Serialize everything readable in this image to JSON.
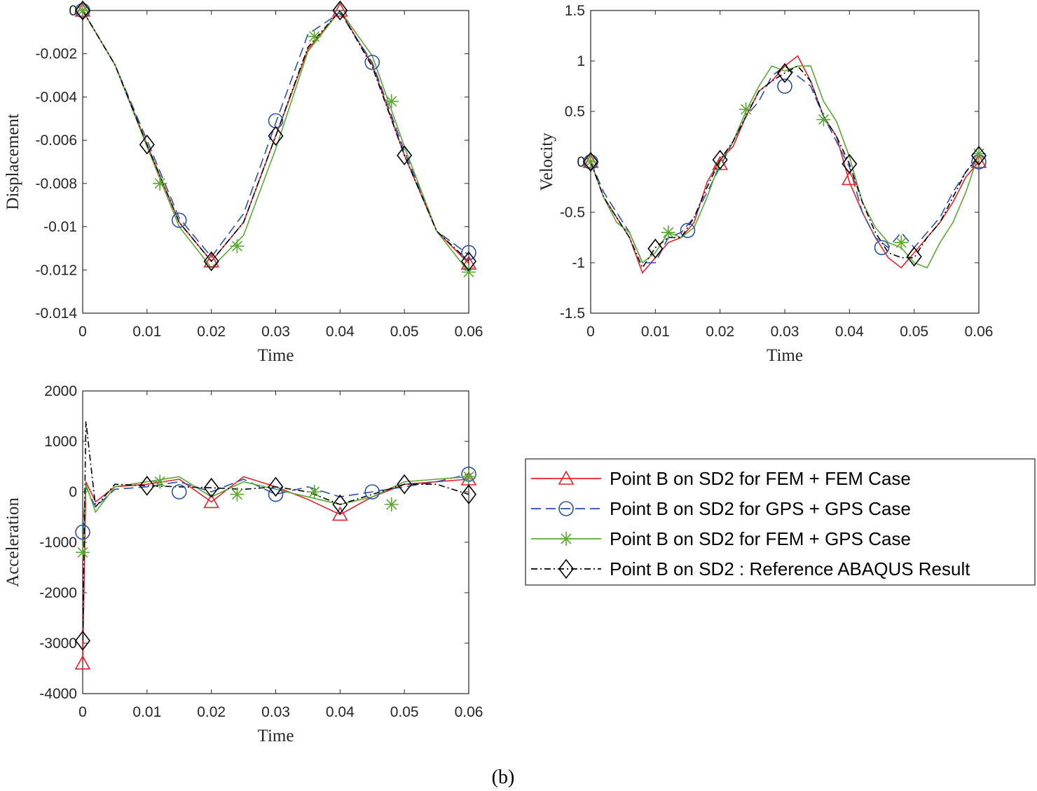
{
  "caption": "(b)",
  "colors": {
    "fem_fem": "#e8202a",
    "gps_gps": "#2a4fae",
    "fem_gps": "#5aa832",
    "abaqus": "#000000",
    "axis": "#262626"
  },
  "legend": {
    "entries": [
      {
        "label": "Point B on SD2 for FEM + FEM Case",
        "series": "fem_fem"
      },
      {
        "label": "Point B on SD2 for GPS + GPS Case",
        "series": "gps_gps"
      },
      {
        "label": "Point B on SD2 for FEM + GPS Case",
        "series": "fem_gps"
      },
      {
        "label": "Point B on SD2 : Reference ABAQUS Result",
        "series": "abaqus"
      }
    ]
  },
  "chart_data": [
    {
      "type": "line",
      "id": "displacement",
      "xlabel": "Time",
      "ylabel": "Displacement",
      "xlim": [
        0,
        0.06
      ],
      "ylim": [
        -0.014,
        0
      ],
      "xticks": [
        "0",
        "0.01",
        "0.02",
        "0.03",
        "0.04",
        "0.05",
        "0.06"
      ],
      "yticks": [
        "0",
        "-0.002",
        "-0.004",
        "-0.006",
        "-0.008",
        "-0.01",
        "-0.012",
        "-0.014"
      ],
      "series": [
        {
          "name": "Point B on SD2 for FEM + FEM Case",
          "key": "fem_fem",
          "marker": "triangle",
          "x": [
            0,
            0.005,
            0.01,
            0.015,
            0.02,
            0.025,
            0.03,
            0.035,
            0.04,
            0.045,
            0.05,
            0.055,
            0.06
          ],
          "y": [
            0,
            -0.0025,
            -0.0062,
            -0.0098,
            -0.0116,
            -0.0098,
            -0.0058,
            -0.0018,
            0,
            -0.0025,
            -0.0067,
            -0.0102,
            -0.0117
          ],
          "markers_x": [
            0,
            0.02,
            0.04,
            0.06
          ],
          "markers_y": [
            0,
            -0.0116,
            0,
            -0.0117
          ]
        },
        {
          "name": "Point B on SD2 for GPS + GPS Case",
          "key": "gps_gps",
          "marker": "circle",
          "x": [
            0,
            0.005,
            0.01,
            0.015,
            0.02,
            0.025,
            0.03,
            0.035,
            0.04,
            0.045,
            0.05,
            0.055,
            0.06
          ],
          "y": [
            0,
            -0.0025,
            -0.006,
            -0.0096,
            -0.0114,
            -0.0094,
            -0.0052,
            -0.0011,
            -0.0001,
            -0.0024,
            -0.0065,
            -0.0102,
            -0.0113
          ],
          "markers_x": [
            0,
            0.015,
            0.03,
            0.045,
            0.06
          ],
          "markers_y": [
            0,
            -0.0097,
            -0.0051,
            -0.0024,
            -0.0112
          ]
        },
        {
          "name": "Point B on SD2 for FEM + GPS Case",
          "key": "fem_gps",
          "marker": "asterisk",
          "x": [
            0,
            0.005,
            0.01,
            0.015,
            0.02,
            0.025,
            0.03,
            0.035,
            0.04,
            0.045,
            0.05,
            0.055,
            0.06
          ],
          "y": [
            0,
            -0.0025,
            -0.0063,
            -0.01,
            -0.0119,
            -0.0104,
            -0.0064,
            -0.0019,
            0,
            -0.0021,
            -0.0063,
            -0.0102,
            -0.0121
          ],
          "markers_x": [
            0,
            0.012,
            0.024,
            0.036,
            0.048,
            0.06
          ],
          "markers_y": [
            0,
            -0.008,
            -0.0109,
            -0.0012,
            -0.0042,
            -0.0121
          ]
        },
        {
          "name": "Point B on SD2 : Reference ABAQUS Result",
          "key": "abaqus",
          "marker": "diamond",
          "x": [
            0,
            0.005,
            0.01,
            0.015,
            0.02,
            0.025,
            0.03,
            0.035,
            0.04,
            0.045,
            0.05,
            0.055,
            0.06
          ],
          "y": [
            0,
            -0.0025,
            -0.0062,
            -0.0098,
            -0.0116,
            -0.0098,
            -0.0058,
            -0.0017,
            0,
            -0.0026,
            -0.0067,
            -0.0102,
            -0.0116
          ],
          "markers_x": [
            0,
            0.01,
            0.02,
            0.03,
            0.04,
            0.05,
            0.06
          ],
          "markers_y": [
            0,
            -0.0062,
            -0.0116,
            -0.0058,
            0,
            -0.0067,
            -0.0116
          ]
        }
      ]
    },
    {
      "type": "line",
      "id": "velocity",
      "xlabel": "Time",
      "ylabel": "Velocity",
      "xlim": [
        0,
        0.06
      ],
      "ylim": [
        -1.5,
        1.5
      ],
      "xticks": [
        "0",
        "0.01",
        "0.02",
        "0.03",
        "0.04",
        "0.05",
        "0.06"
      ],
      "yticks": [
        "1.5",
        "1",
        "0.5",
        "0",
        "-0.5",
        "-1",
        "-1.5"
      ],
      "series": [
        {
          "name": "Point B on SD2 for FEM + FEM Case",
          "key": "fem_fem",
          "marker": "triangle",
          "x": [
            0,
            0.002,
            0.004,
            0.006,
            0.008,
            0.01,
            0.012,
            0.014,
            0.016,
            0.018,
            0.02,
            0.022,
            0.024,
            0.026,
            0.028,
            0.03,
            0.032,
            0.034,
            0.036,
            0.038,
            0.04,
            0.042,
            0.044,
            0.046,
            0.048,
            0.05,
            0.052,
            0.054,
            0.056,
            0.058,
            0.06
          ],
          "y": [
            0,
            -0.35,
            -0.55,
            -0.75,
            -1.1,
            -0.95,
            -0.8,
            -0.75,
            -0.6,
            -0.2,
            0.02,
            0.15,
            0.45,
            0.7,
            0.8,
            0.95,
            1.05,
            0.8,
            0.45,
            0.25,
            -0.2,
            -0.5,
            -0.75,
            -0.95,
            -1.05,
            -0.9,
            -0.75,
            -0.6,
            -0.4,
            -0.15,
            0
          ],
          "markers_x": [
            0,
            0.02,
            0.04,
            0.06
          ],
          "markers_y": [
            0,
            -0.02,
            -0.17,
            0
          ]
        },
        {
          "name": "Point B on SD2 for GPS + GPS Case",
          "key": "gps_gps",
          "marker": "circle",
          "x": [
            0,
            0.002,
            0.004,
            0.006,
            0.008,
            0.01,
            0.012,
            0.014,
            0.016,
            0.018,
            0.02,
            0.022,
            0.024,
            0.026,
            0.028,
            0.03,
            0.032,
            0.034,
            0.036,
            0.038,
            0.04,
            0.042,
            0.044,
            0.046,
            0.048,
            0.05,
            0.052,
            0.054,
            0.056,
            0.058,
            0.06
          ],
          "y": [
            0,
            -0.3,
            -0.5,
            -0.7,
            -1.0,
            -1.0,
            -0.75,
            -0.7,
            -0.55,
            -0.3,
            -0.05,
            0.2,
            0.45,
            0.6,
            0.85,
            0.95,
            0.85,
            0.75,
            0.45,
            0.2,
            -0.05,
            -0.5,
            -0.75,
            -0.85,
            -0.7,
            -0.85,
            -0.7,
            -0.55,
            -0.3,
            -0.1,
            0.05
          ],
          "markers_x": [
            0,
            0.015,
            0.03,
            0.045,
            0.06
          ],
          "markers_y": [
            0,
            -0.68,
            0.75,
            -0.85,
            0
          ]
        },
        {
          "name": "Point B on SD2 for FEM + GPS Case",
          "key": "fem_gps",
          "marker": "asterisk",
          "x": [
            0,
            0.002,
            0.004,
            0.006,
            0.008,
            0.01,
            0.012,
            0.014,
            0.016,
            0.018,
            0.02,
            0.022,
            0.024,
            0.026,
            0.028,
            0.03,
            0.032,
            0.034,
            0.036,
            0.038,
            0.04,
            0.042,
            0.044,
            0.046,
            0.048,
            0.05,
            0.052,
            0.054,
            0.056,
            0.058,
            0.06
          ],
          "y": [
            0,
            -0.35,
            -0.6,
            -0.7,
            -1.0,
            -0.9,
            -0.7,
            -0.75,
            -0.65,
            -0.35,
            0.0,
            0.2,
            0.5,
            0.75,
            0.95,
            0.9,
            0.95,
            0.95,
            0.6,
            0.4,
            0.05,
            -0.4,
            -0.65,
            -0.8,
            -0.85,
            -1.0,
            -1.05,
            -0.8,
            -0.6,
            -0.3,
            0.08
          ],
          "markers_x": [
            0,
            0.012,
            0.024,
            0.036,
            0.048,
            0.06
          ],
          "markers_y": [
            0,
            -0.7,
            0.52,
            0.42,
            -0.8,
            0.08
          ]
        },
        {
          "name": "Point B on SD2 : Reference ABAQUS Result",
          "key": "abaqus",
          "marker": "diamond",
          "x": [
            0,
            0.002,
            0.004,
            0.006,
            0.008,
            0.01,
            0.012,
            0.014,
            0.016,
            0.018,
            0.02,
            0.022,
            0.024,
            0.026,
            0.028,
            0.03,
            0.032,
            0.034,
            0.036,
            0.038,
            0.04,
            0.042,
            0.044,
            0.046,
            0.048,
            0.05,
            0.052,
            0.054,
            0.056,
            0.058,
            0.06
          ],
          "y": [
            0,
            -0.35,
            -0.55,
            -0.75,
            -1.05,
            -0.85,
            -0.75,
            -0.75,
            -0.55,
            -0.25,
            0.02,
            0.2,
            0.45,
            0.7,
            0.8,
            0.88,
            0.95,
            0.8,
            0.45,
            0.25,
            -0.02,
            -0.4,
            -0.7,
            -0.9,
            -0.95,
            -0.95,
            -0.75,
            -0.6,
            -0.35,
            -0.1,
            0.06
          ],
          "markers_x": [
            0,
            0.01,
            0.02,
            0.03,
            0.04,
            0.05,
            0.06
          ],
          "markers_y": [
            0,
            -0.86,
            0.02,
            0.88,
            -0.02,
            -0.94,
            0.06
          ]
        }
      ]
    },
    {
      "type": "line",
      "id": "acceleration",
      "xlabel": "Time",
      "ylabel": "Acceleration",
      "xlim": [
        0,
        0.06
      ],
      "ylim": [
        -4000,
        2000
      ],
      "xticks": [
        "0",
        "0.01",
        "0.02",
        "0.03",
        "0.04",
        "0.05",
        "0.06"
      ],
      "yticks": [
        "2000",
        "1000",
        "0",
        "-1000",
        "-2000",
        "-3000",
        "-4000"
      ],
      "series": [
        {
          "name": "Point B on SD2 for FEM + FEM Case",
          "key": "fem_fem",
          "marker": "triangle",
          "x": [
            0,
            0.0005,
            0.002,
            0.005,
            0.01,
            0.015,
            0.02,
            0.025,
            0.03,
            0.035,
            0.04,
            0.045,
            0.05,
            0.055,
            0.06
          ],
          "y": [
            -3400,
            200,
            -200,
            100,
            150,
            250,
            -200,
            300,
            100,
            -150,
            -450,
            -100,
            150,
            200,
            250
          ],
          "markers_x": [
            0,
            0.02,
            0.04,
            0.06
          ],
          "markers_y": [
            -3400,
            -200,
            -450,
            250
          ]
        },
        {
          "name": "Point B on SD2 for GPS + GPS Case",
          "key": "gps_gps",
          "marker": "circle",
          "x": [
            0,
            0.0005,
            0.002,
            0.005,
            0.01,
            0.015,
            0.02,
            0.025,
            0.03,
            0.035,
            0.04,
            0.045,
            0.05,
            0.055,
            0.06
          ],
          "y": [
            -800,
            100,
            -300,
            50,
            100,
            200,
            0,
            250,
            -50,
            100,
            -100,
            0,
            100,
            200,
            350
          ],
          "markers_x": [
            0,
            0.015,
            0.03,
            0.045,
            0.06
          ],
          "markers_y": [
            -800,
            0,
            -50,
            0,
            350
          ]
        },
        {
          "name": "Point B on SD2 for FEM + GPS Case",
          "key": "fem_gps",
          "marker": "asterisk",
          "x": [
            0,
            0.0005,
            0.002,
            0.005,
            0.01,
            0.015,
            0.02,
            0.025,
            0.03,
            0.035,
            0.04,
            0.045,
            0.05,
            0.055,
            0.06
          ],
          "y": [
            -1200,
            150,
            -400,
            100,
            200,
            300,
            -100,
            200,
            50,
            -100,
            -250,
            -100,
            200,
            250,
            300
          ],
          "markers_x": [
            0,
            0.012,
            0.024,
            0.036,
            0.048,
            0.06
          ],
          "markers_y": [
            -1200,
            200,
            -50,
            0,
            -250,
            300
          ]
        },
        {
          "name": "Point B on SD2 : Reference ABAQUS Result",
          "key": "abaqus",
          "marker": "diamond",
          "x": [
            0,
            0.0005,
            0.002,
            0.005,
            0.01,
            0.015,
            0.02,
            0.025,
            0.03,
            0.035,
            0.04,
            0.045,
            0.05,
            0.055,
            0.06
          ],
          "y": [
            -2950,
            1400,
            -300,
            150,
            120,
            100,
            80,
            50,
            100,
            0,
            -250,
            -50,
            150,
            150,
            -50
          ],
          "markers_x": [
            0,
            0.01,
            0.02,
            0.03,
            0.04,
            0.05,
            0.06
          ],
          "markers_y": [
            -2950,
            120,
            80,
            100,
            -250,
            150,
            -50
          ]
        }
      ]
    }
  ]
}
